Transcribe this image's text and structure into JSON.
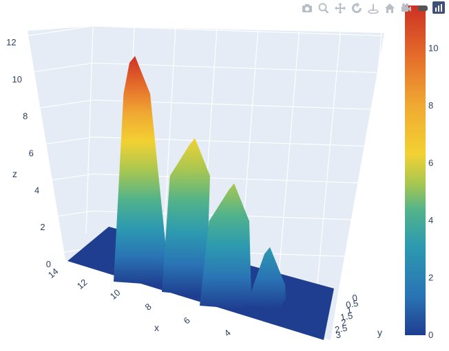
{
  "modebar": {
    "buttons": [
      "camera-icon",
      "zoom-icon",
      "pan-icon",
      "orbit-icon",
      "turntable-icon",
      "home-icon",
      "camera-view-icon",
      "toggle-hover-icon",
      "plotly-logo-icon"
    ]
  },
  "colorscale": [
    "#1f3e8f",
    "#2a74b5",
    "#2d9ab0",
    "#52b38a",
    "#a8c751",
    "#f2d133",
    "#f0a832",
    "#e46b2b",
    "#cc3123"
  ],
  "chart_data": {
    "type": "surface",
    "title": "",
    "xlabel": "x",
    "ylabel": "y",
    "zlabel": "z",
    "x_ticks": [
      "4",
      "6",
      "8",
      "10",
      "12",
      "14"
    ],
    "y_ticks": [
      "0",
      "0.5",
      "1",
      "1.5",
      "2",
      "2.5",
      "3"
    ],
    "z_ticks": [
      "0",
      "2",
      "4",
      "6",
      "8",
      "10",
      "12"
    ],
    "colorbar_ticks": [
      "0",
      "2",
      "4",
      "6",
      "8",
      "10"
    ],
    "zlim": [
      0,
      12
    ],
    "colorbar_range": [
      0,
      11.5
    ],
    "grid": true,
    "peaks": [
      {
        "x": 11,
        "z": 11.5
      },
      {
        "x": 8.5,
        "z": 7.5
      },
      {
        "x": 6.3,
        "z": 5.5
      },
      {
        "x": 4.5,
        "z": 2.5
      }
    ],
    "base_z": 0
  }
}
